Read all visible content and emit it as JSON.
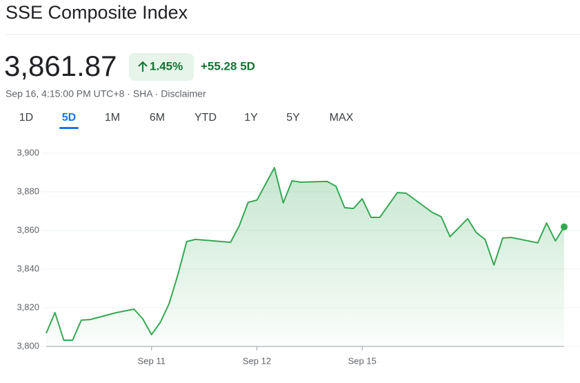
{
  "header": {
    "title": "SSE Composite Index",
    "price": "3,861.87",
    "change_percent": "1.45%",
    "change": "+55.28 5D",
    "subline": "Sep 16, 4:15:00 PM UTC+8 · SHA · Disclaimer"
  },
  "tabs": [
    "1D",
    "5D",
    "1M",
    "6M",
    "YTD",
    "1Y",
    "5Y",
    "MAX"
  ],
  "selected_tab": "5D",
  "chart_data": {
    "type": "line",
    "color": "#34a853",
    "grid": true,
    "x": [
      0,
      1,
      2,
      3,
      4,
      5,
      8,
      10,
      11,
      12,
      13,
      14,
      15,
      16,
      17,
      21,
      22,
      23,
      24,
      26,
      27,
      28,
      29,
      32,
      33,
      34,
      35,
      36,
      37,
      38,
      40,
      41,
      44,
      45,
      46,
      48,
      49,
      50,
      51,
      52,
      53,
      56,
      57,
      58,
      59
    ],
    "values": [
      3806.8,
      3817.5,
      3803.2,
      3803.2,
      3813.6,
      3813.9,
      3817.5,
      3819.3,
      3814.3,
      3806.1,
      3812.5,
      3822.1,
      3837.1,
      3854.3,
      3855.4,
      3853.9,
      3862.5,
      3874.6,
      3875.7,
      3892.5,
      3874.3,
      3885.7,
      3885.0,
      3885.4,
      3882.9,
      3871.8,
      3871.4,
      3876.4,
      3866.8,
      3866.8,
      3879.6,
      3879.3,
      3869.3,
      3867.1,
      3856.8,
      3866.1,
      3858.9,
      3855.4,
      3842.1,
      3856.1,
      3856.4,
      3853.6,
      3863.9,
      3854.6,
      3861.87
    ],
    "xlim": [
      0,
      59
    ],
    "xticks": [
      {
        "value": 12,
        "label": "Sep 11"
      },
      {
        "value": 24,
        "label": "Sep 12"
      },
      {
        "value": 36,
        "label": "Sep 15"
      }
    ],
    "ylim": [
      3800,
      3900
    ],
    "yticks": [
      {
        "value": 3800,
        "label": "3,800"
      },
      {
        "value": 3820,
        "label": "3,820"
      },
      {
        "value": 3840,
        "label": "3,840"
      },
      {
        "value": 3860,
        "label": "3,860"
      },
      {
        "value": 3880,
        "label": "3,880"
      },
      {
        "value": 3900,
        "label": "3,900"
      }
    ]
  }
}
